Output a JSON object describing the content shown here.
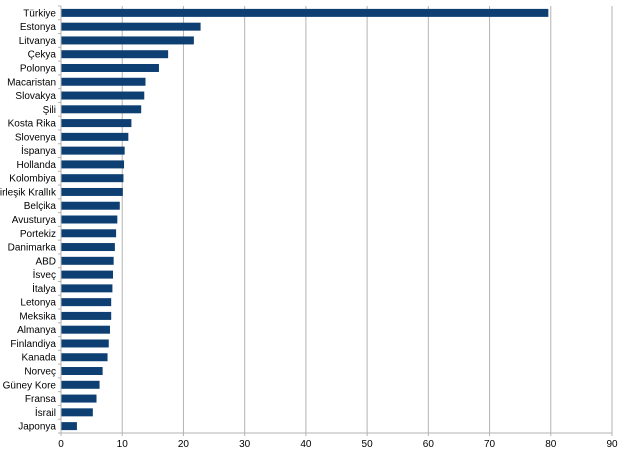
{
  "chart_data": {
    "type": "bar",
    "orientation": "horizontal",
    "title": "",
    "xlabel": "",
    "ylabel": "",
    "xlim": [
      0,
      90
    ],
    "x_ticks": [
      0,
      10,
      20,
      30,
      40,
      50,
      60,
      70,
      80,
      90
    ],
    "grid": true,
    "legend": "none",
    "bar_color": "#0d3f73",
    "categories": [
      "Türkiye",
      "Estonya",
      "Litvanya",
      "Çekya",
      "Polonya",
      "Macaristan",
      "Slovakya",
      "Şili",
      "Kosta Rika",
      "Slovenya",
      "İspanya",
      "Hollanda",
      "Kolombiya",
      "Birleşik Krallık",
      "Belçika",
      "Avusturya",
      "Portekiz",
      "Danimarka",
      "ABD",
      "İsveç",
      "İtalya",
      "Letonya",
      "Meksika",
      "Almanya",
      "Finlandiya",
      "Kanada",
      "Norveç",
      "Güney Kore",
      "Fransa",
      "İsrail",
      "Japonya"
    ],
    "values": [
      79.6,
      22.8,
      21.7,
      17.5,
      16.0,
      13.8,
      13.6,
      13.1,
      11.5,
      11.0,
      10.4,
      10.3,
      10.2,
      10.1,
      9.6,
      9.2,
      9.0,
      8.8,
      8.6,
      8.5,
      8.4,
      8.2,
      8.2,
      8.0,
      7.8,
      7.6,
      6.8,
      6.3,
      5.8,
      5.2,
      2.6
    ]
  }
}
